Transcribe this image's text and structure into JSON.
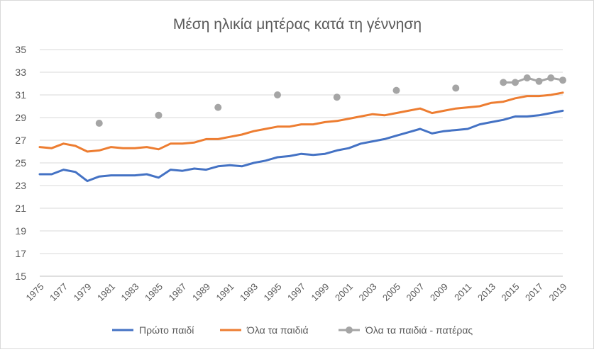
{
  "chart_data": {
    "type": "line",
    "title": "Μέση ηλικία μητέρας κατά τη γέννηση",
    "xlabel": "",
    "ylabel": "",
    "ylim": [
      15,
      35
    ],
    "yticks": [
      15,
      17,
      19,
      21,
      23,
      25,
      27,
      29,
      31,
      33,
      35
    ],
    "grid": true,
    "legend": "bottom",
    "x": [
      1975,
      1976,
      1977,
      1978,
      1979,
      1980,
      1981,
      1982,
      1983,
      1984,
      1985,
      1986,
      1987,
      1988,
      1989,
      1990,
      1991,
      1992,
      1993,
      1994,
      1995,
      1996,
      1997,
      1998,
      1999,
      2000,
      2001,
      2002,
      2003,
      2004,
      2005,
      2006,
      2007,
      2008,
      2009,
      2010,
      2011,
      2012,
      2013,
      2014,
      2015,
      2016,
      2017,
      2018,
      2019
    ],
    "xticks": [
      1975,
      1977,
      1979,
      1981,
      1983,
      1985,
      1987,
      1989,
      1991,
      1993,
      1995,
      1997,
      1999,
      2001,
      2003,
      2005,
      2007,
      2009,
      2011,
      2013,
      2015,
      2017,
      2019
    ],
    "series": [
      {
        "name": "Πρώτο παιδί",
        "color": "#4472c4",
        "style": "line",
        "values": [
          24.0,
          24.0,
          24.4,
          24.2,
          23.4,
          23.8,
          23.9,
          23.9,
          23.9,
          24.0,
          23.7,
          24.4,
          24.3,
          24.5,
          24.4,
          24.7,
          24.8,
          24.7,
          25.0,
          25.2,
          25.5,
          25.6,
          25.8,
          25.7,
          25.8,
          26.1,
          26.3,
          26.7,
          26.9,
          27.1,
          27.4,
          27.7,
          28.0,
          27.6,
          27.8,
          27.9,
          28.0,
          28.4,
          28.6,
          28.8,
          29.1,
          29.1,
          29.2,
          29.4,
          29.6
        ]
      },
      {
        "name": "Όλα τα παιδιά",
        "color": "#ed7d31",
        "style": "line",
        "values": [
          26.4,
          26.3,
          26.7,
          26.5,
          26.0,
          26.1,
          26.4,
          26.3,
          26.3,
          26.4,
          26.2,
          26.7,
          26.7,
          26.8,
          27.1,
          27.1,
          27.3,
          27.5,
          27.8,
          28.0,
          28.2,
          28.2,
          28.4,
          28.4,
          28.6,
          28.7,
          28.9,
          29.1,
          29.3,
          29.2,
          29.4,
          29.6,
          29.8,
          29.4,
          29.6,
          29.8,
          29.9,
          30.0,
          30.3,
          30.4,
          30.7,
          30.9,
          30.9,
          31.0,
          31.2
        ]
      },
      {
        "name": "Όλα τα παιδιά - πατέρας",
        "color": "#a5a5a5",
        "style": "line-markers",
        "x": [
          1980,
          1985,
          1990,
          1995,
          2000,
          2005,
          2010,
          2014,
          2015,
          2016,
          2017,
          2018,
          2019
        ],
        "values": [
          28.5,
          29.2,
          29.9,
          31.0,
          30.8,
          31.4,
          31.6,
          32.1,
          32.1,
          32.5,
          32.2,
          32.5,
          32.3
        ],
        "connect_from": 2014
      }
    ]
  }
}
